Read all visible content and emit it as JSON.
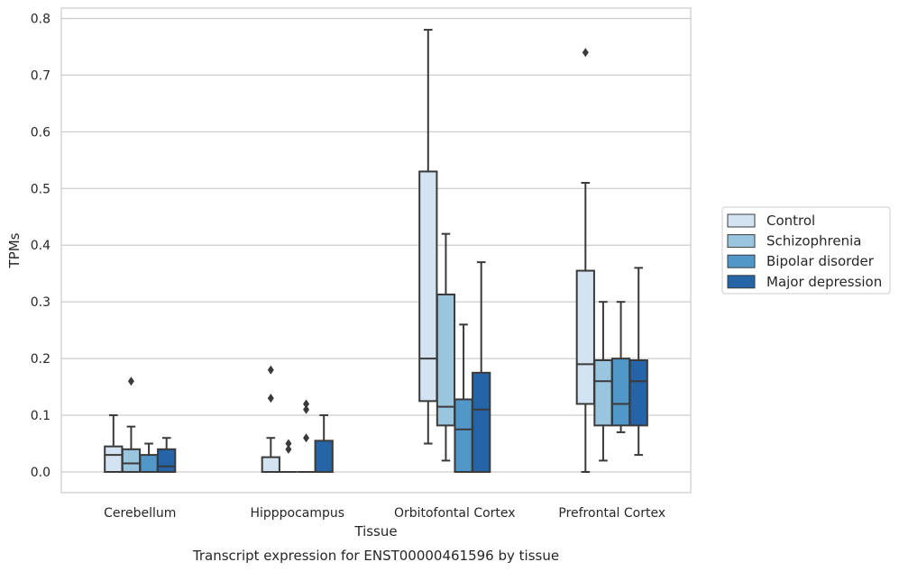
{
  "chart_data": {
    "type": "boxplot",
    "xlabel": "Tissue",
    "ylabel": "TPMs",
    "caption": "Transcript expression for ENST00000461596 by tissue",
    "ylim": [
      -0.04,
      0.82
    ],
    "yticks": [
      0.0,
      0.1,
      0.2,
      0.3,
      0.4,
      0.5,
      0.6,
      0.7,
      0.8
    ],
    "ytick_labels": [
      "0.0",
      "0.1",
      "0.2",
      "0.3",
      "0.4",
      "0.5",
      "0.6",
      "0.7",
      "0.8"
    ],
    "grid": "horizontal",
    "legend_position": "right",
    "categories": [
      "Cerebellum",
      "Hipppocampus",
      "Orbitofontal Cortex",
      "Prefrontal Cortex"
    ],
    "series": [
      {
        "name": "Control",
        "color": "#d3e3f2",
        "boxes": [
          {
            "whislo": 0.0,
            "q1": 0.0,
            "med": 0.03,
            "q3": 0.045,
            "whishi": 0.1,
            "fliers": []
          },
          {
            "whislo": 0.0,
            "q1": 0.0,
            "med": 0.0,
            "q3": 0.026,
            "whishi": 0.06,
            "fliers": [
              0.13,
              0.18
            ]
          },
          {
            "whislo": 0.05,
            "q1": 0.125,
            "med": 0.2,
            "q3": 0.53,
            "whishi": 0.78,
            "fliers": []
          },
          {
            "whislo": 0.0,
            "q1": 0.12,
            "med": 0.19,
            "q3": 0.355,
            "whishi": 0.51,
            "fliers": [
              0.74
            ]
          }
        ]
      },
      {
        "name": "Schizophrenia",
        "color": "#9ac5df",
        "boxes": [
          {
            "whislo": 0.0,
            "q1": 0.0,
            "med": 0.015,
            "q3": 0.04,
            "whishi": 0.08,
            "fliers": [
              0.16
            ]
          },
          {
            "whislo": 0.0,
            "q1": 0.0,
            "med": 0.0,
            "q3": 0.0,
            "whishi": 0.0,
            "fliers": [
              0.04,
              0.05
            ]
          },
          {
            "whislo": 0.02,
            "q1": 0.082,
            "med": 0.115,
            "q3": 0.313,
            "whishi": 0.42,
            "fliers": []
          },
          {
            "whislo": 0.02,
            "q1": 0.082,
            "med": 0.16,
            "q3": 0.197,
            "whishi": 0.3,
            "fliers": []
          }
        ]
      },
      {
        "name": "Bipolar disorder",
        "color": "#5197c8",
        "boxes": [
          {
            "whislo": 0.0,
            "q1": 0.0,
            "med": 0.0,
            "q3": 0.03,
            "whishi": 0.05,
            "fliers": []
          },
          {
            "whislo": 0.0,
            "q1": 0.0,
            "med": 0.0,
            "q3": 0.0,
            "whishi": 0.0,
            "fliers": [
              0.06,
              0.11,
              0.12
            ]
          },
          {
            "whislo": 0.0,
            "q1": 0.0,
            "med": 0.075,
            "q3": 0.128,
            "whishi": 0.26,
            "fliers": []
          },
          {
            "whislo": 0.07,
            "q1": 0.082,
            "med": 0.12,
            "q3": 0.2,
            "whishi": 0.3,
            "fliers": []
          }
        ]
      },
      {
        "name": "Major depression",
        "color": "#2565a7",
        "boxes": [
          {
            "whislo": 0.0,
            "q1": 0.0,
            "med": 0.01,
            "q3": 0.04,
            "whishi": 0.06,
            "fliers": []
          },
          {
            "whislo": 0.0,
            "q1": 0.0,
            "med": 0.0,
            "q3": 0.055,
            "whishi": 0.1,
            "fliers": []
          },
          {
            "whislo": 0.0,
            "q1": 0.0,
            "med": 0.11,
            "q3": 0.175,
            "whishi": 0.37,
            "fliers": []
          },
          {
            "whislo": 0.03,
            "q1": 0.082,
            "med": 0.16,
            "q3": 0.197,
            "whishi": 0.36,
            "fliers": []
          }
        ]
      }
    ]
  }
}
